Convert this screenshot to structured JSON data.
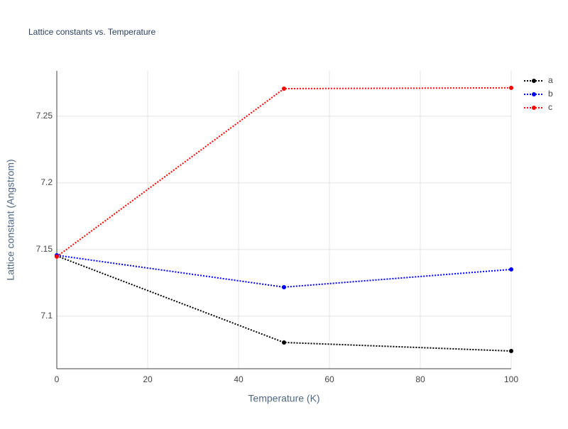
{
  "chart_data": {
    "type": "line",
    "title": "Lattice constants vs. Temperature",
    "x_label": "Temperature (K)",
    "y_label": "Lattice constant (Angstrom)",
    "x": [
      0,
      50,
      100
    ],
    "series": [
      {
        "name": "a",
        "color": "#000000",
        "values": [
          7.1452,
          7.0803,
          7.0739
        ]
      },
      {
        "name": "b",
        "color": "#0000ff",
        "values": [
          7.1457,
          7.1218,
          7.1351
        ]
      },
      {
        "name": "c",
        "color": "#ff0000",
        "values": [
          7.1447,
          7.2707,
          7.2713
        ]
      }
    ],
    "xlim": [
      0,
      100
    ],
    "xticks": [
      0,
      20,
      40,
      60,
      80,
      100
    ],
    "ylim": [
      7.0606,
      7.284
    ],
    "yticks": [
      7.1,
      7.15,
      7.2,
      7.25
    ],
    "grid": true,
    "legend": "top-right",
    "line_style": "dotted"
  }
}
